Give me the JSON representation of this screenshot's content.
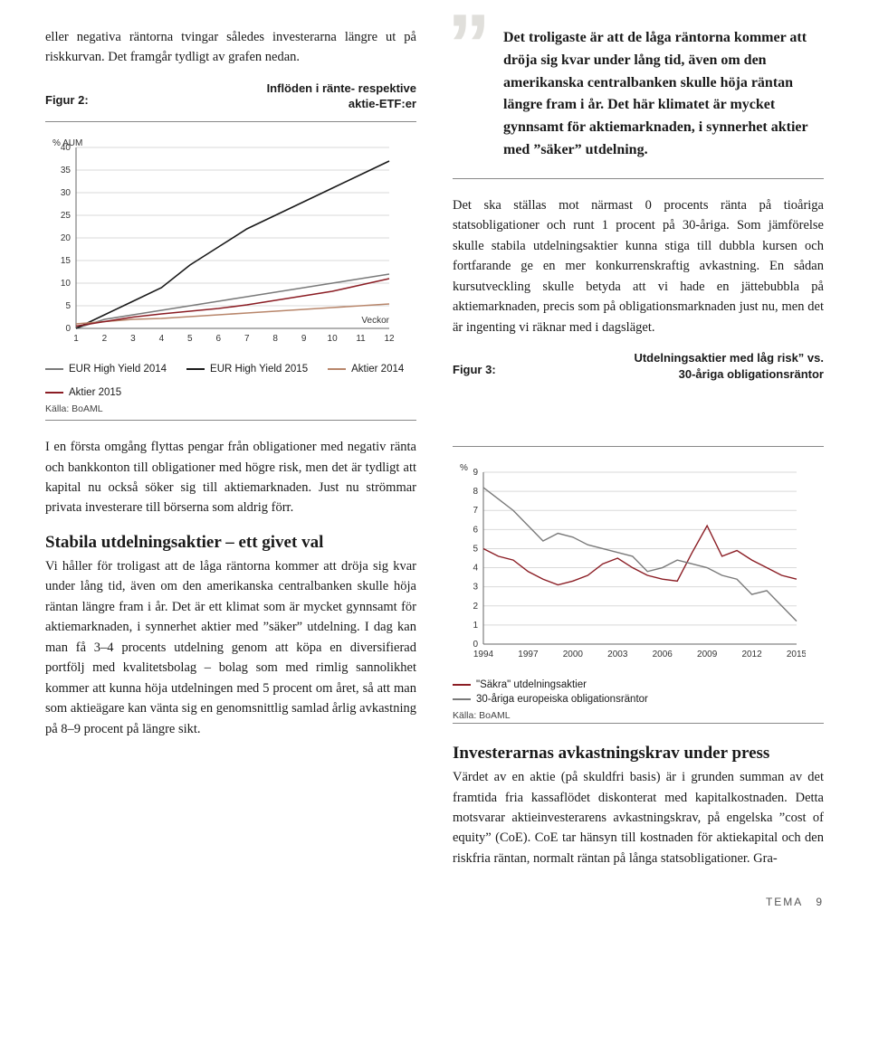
{
  "left_intro": "eller negativa räntorna tvingar således investerarna längre ut på riskkurvan. Det framgår tydligt av grafen nedan.",
  "fig2": {
    "label": "Figur 2:",
    "title_line1": "Inflöden i ränte- respektive",
    "title_line2": "aktie-ETF:er",
    "type": "line",
    "y_axis_label": "% AUM",
    "x_axis_label": "Veckor",
    "xlim": [
      1,
      12
    ],
    "ylim": [
      0,
      40
    ],
    "y_ticks": [
      0,
      5,
      10,
      15,
      20,
      25,
      30,
      35,
      40
    ],
    "x_ticks": [
      1,
      2,
      3,
      4,
      5,
      6,
      7,
      8,
      9,
      10,
      11,
      12
    ],
    "grid_color": "#d9d9d9",
    "axis_color": "#666666",
    "background_color": "#ffffff",
    "axis_fontsize": 10,
    "line_width": 1.6,
    "series": [
      {
        "name": "EUR High Yield 2014",
        "color": "#7a7a7a",
        "values": [
          0,
          2,
          3,
          4,
          5,
          6,
          7,
          8,
          9,
          10,
          11,
          12
        ]
      },
      {
        "name": "EUR High Yield 2015",
        "color": "#1a1a1a",
        "values": [
          0,
          3,
          6,
          9,
          14,
          18,
          22,
          25,
          28,
          31,
          34,
          37
        ]
      },
      {
        "name": "Aktier 2014",
        "color": "#b8866b",
        "values": [
          1,
          1.5,
          2,
          2.2,
          2.6,
          3.0,
          3.4,
          3.8,
          4.2,
          4.6,
          5.0,
          5.4
        ]
      },
      {
        "name": "Aktier 2015",
        "color": "#8b1d24",
        "values": [
          0.5,
          1.5,
          2.5,
          3.2,
          3.8,
          4.4,
          5.2,
          6.2,
          7.2,
          8.2,
          9.6,
          11.0
        ]
      }
    ],
    "source": "Källa: BoAML"
  },
  "pullquote": "Det troligaste är att de låga räntorna kommer att dröja sig kvar under lång tid, även om den amerikanska central­banken skulle höja räntan längre fram i år. Det här klimatet är mycket gynnsamt för aktiemarknaden, i synnerhet aktier med ”säker” utdelning.",
  "right_body1": "Det ska ställas mot närmast 0 procents ränta på tioåriga statsobligationer och runt 1 procent på 30-åriga. Som jämförelse skulle stabila utdelningsaktier kunna stiga till dubbla kursen och fortfarande ge en mer konkurrenskraftig avkastning. En sådan kursutveckling skulle betyda att vi hade en jättebubbla på aktiemarknaden, precis som på obligationsmarknaden just nu, men det är ingenting vi räknar med i dagsläget.",
  "fig3": {
    "label": "Figur 3:",
    "title_line1": "Utdelningsaktier med låg risk” vs.",
    "title_line2": "30-åriga obligationsräntor",
    "type": "line",
    "y_axis_label": "%",
    "xlim": [
      1994,
      2015
    ],
    "ylim": [
      0,
      9
    ],
    "y_ticks": [
      0,
      1,
      2,
      3,
      4,
      5,
      6,
      7,
      8,
      9
    ],
    "x_ticks": [
      1994,
      1997,
      2000,
      2003,
      2006,
      2009,
      2012,
      2015
    ],
    "grid_color": "#d9d9d9",
    "axis_color": "#666666",
    "background_color": "#ffffff",
    "axis_fontsize": 10,
    "line_width": 1.4,
    "series": [
      {
        "name": "\"Säkra\" utdelningsaktier",
        "color": "#8b1d24",
        "values": [
          [
            1994,
            5.0
          ],
          [
            1995,
            4.6
          ],
          [
            1996,
            4.4
          ],
          [
            1997,
            3.8
          ],
          [
            1998,
            3.4
          ],
          [
            1999,
            3.1
          ],
          [
            2000,
            3.3
          ],
          [
            2001,
            3.6
          ],
          [
            2002,
            4.2
          ],
          [
            2003,
            4.5
          ],
          [
            2004,
            4.0
          ],
          [
            2005,
            3.6
          ],
          [
            2006,
            3.4
          ],
          [
            2007,
            3.3
          ],
          [
            2008,
            4.8
          ],
          [
            2009,
            6.2
          ],
          [
            2010,
            4.6
          ],
          [
            2011,
            4.9
          ],
          [
            2012,
            4.4
          ],
          [
            2013,
            4.0
          ],
          [
            2014,
            3.6
          ],
          [
            2015,
            3.4
          ]
        ]
      },
      {
        "name": "30-åriga europeiska obligationsräntor",
        "color": "#7a7a7a",
        "values": [
          [
            1994,
            8.2
          ],
          [
            1995,
            7.6
          ],
          [
            1996,
            7.0
          ],
          [
            1997,
            6.2
          ],
          [
            1998,
            5.4
          ],
          [
            1999,
            5.8
          ],
          [
            2000,
            5.6
          ],
          [
            2001,
            5.2
          ],
          [
            2002,
            5.0
          ],
          [
            2003,
            4.8
          ],
          [
            2004,
            4.6
          ],
          [
            2005,
            3.8
          ],
          [
            2006,
            4.0
          ],
          [
            2007,
            4.4
          ],
          [
            2008,
            4.2
          ],
          [
            2009,
            4.0
          ],
          [
            2010,
            3.6
          ],
          [
            2011,
            3.4
          ],
          [
            2012,
            2.6
          ],
          [
            2013,
            2.8
          ],
          [
            2014,
            2.0
          ],
          [
            2015,
            1.2
          ]
        ]
      }
    ],
    "source": "Källa: BoAML"
  },
  "left_body2": "I en första omgång flyttas pengar från obligationer med negativ ränta och bankkonton till obligationer med högre risk, men det är tydligt att kapital nu också söker sig till aktiemarknaden. Just nu strömmar privata investerare till börserna som aldrig förr.",
  "section2_head": "Stabila utdelningsaktier – ett givet val",
  "section2_body": "Vi håller för troligast att de låga räntorna kommer att dröja sig kvar under lång tid, även om den amerikanska centralbanken skulle höja räntan längre fram i år. Det är ett klimat som är mycket gynnsamt för aktiemarknaden, i synnerhet aktier med ”säker” utdelning. I dag kan man få 3–4 procents utdelning genom att köpa en diversifierad portfölj med kvalitetsbolag – bolag som med rimlig sannolikhet kommer att kunna höja utdelningen med 5 procent om året, så att man som aktieägare kan vänta sig en genomsnittlig samlad årlig avkastning på 8–9 procent på längre sikt.",
  "section3_head": "Investerarnas avkastningskrav under press",
  "section3_body": "Värdet av en aktie (på skuldfri basis) är i grunden summan av det framtida fria kassaflödet diskonterat med kapitalkostnaden. Detta motsvarar aktieinvesterarens avkastningskrav, på engelska ”cost of equity” (CoE). CoE tar hänsyn till kostnaden för aktiekapital och den riskfria räntan, normalt räntan på långa statsobligationer. Gra-",
  "footer_label": "TEMA",
  "footer_page": "9"
}
